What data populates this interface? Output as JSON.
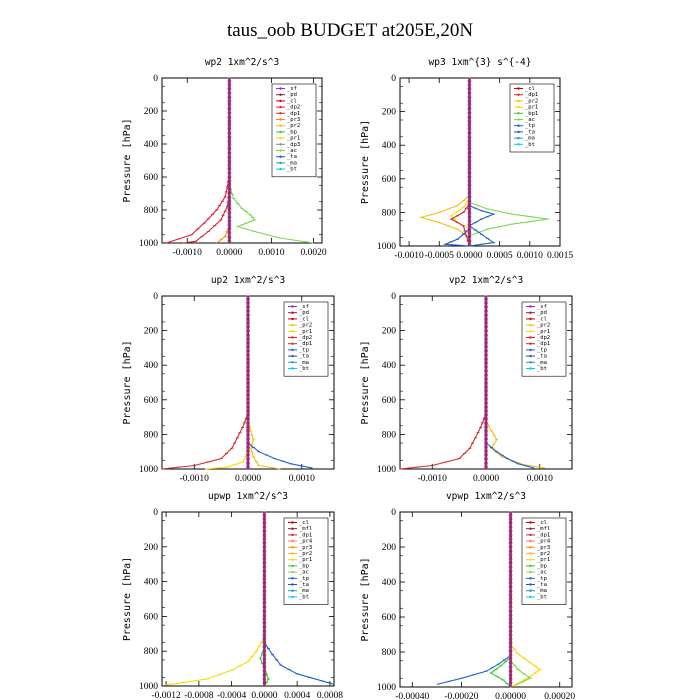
{
  "title": "taus_oob  BUDGET at205E,20N",
  "colors": {
    "_sf": "#8a2be2",
    "_pd": "#8b1a4a",
    "_cl": "#c80000",
    "_dp2": "#e8203a",
    "_dp1": "#d22c2c",
    "_pr3": "#ff8c00",
    "_pr2": "#f0c020",
    "_pr1": "#ffd700",
    "_bp": "#32cd32",
    "_bp1": "#32cd32",
    "_ac": "#7cd850",
    "_tp": "#1e64c8",
    "_ta": "#2050e0",
    "_ma": "#20a0a0",
    "_bt": "#00c8ff",
    "_mfl": "#8b1a4a",
    "_pr4": "#ff7f50"
  },
  "chart_data": [
    {
      "type": "line",
      "title": "wp2   1xm^2/s^3",
      "ylabel": "Pressure [hPa]",
      "xlim": [
        -0.0016,
        0.0022
      ],
      "ylim": [
        1000,
        0
      ],
      "xticks": [
        -0.001,
        0.0,
        0.001,
        0.002
      ],
      "xtick_labels": [
        "-0.0010",
        "0.0000",
        "0.0010",
        "0.0020"
      ],
      "yticks": [
        0,
        200,
        400,
        600,
        800,
        1000
      ],
      "legend": [
        "_sf",
        "_pd",
        "_cl",
        "_dp2",
        "_dp1",
        "_pr3",
        "_pr2",
        "_bp",
        "_pr1",
        "_dp3",
        "_ac",
        "_ta",
        "_ma",
        "_bt"
      ],
      "series": [
        {
          "name": "_dp2",
          "values": [
            [
              0,
              0
            ],
            [
              0,
              600
            ],
            [
              -0.0001,
              720
            ],
            [
              -0.0003,
              800
            ],
            [
              -0.0006,
              880
            ],
            [
              -0.0009,
              950
            ],
            [
              -0.0015,
              1000
            ]
          ]
        },
        {
          "name": "_dp1",
          "values": [
            [
              0,
              0
            ],
            [
              0,
              700
            ],
            [
              -5e-05,
              780
            ],
            [
              -0.0002,
              860
            ],
            [
              -0.0005,
              930
            ],
            [
              -0.0008,
              990
            ],
            [
              -0.0011,
              1000
            ]
          ]
        },
        {
          "name": "_ac",
          "values": [
            [
              0,
              0
            ],
            [
              0,
              650
            ],
            [
              0.0001,
              730
            ],
            [
              0.0003,
              790
            ],
            [
              0.0005,
              830
            ],
            [
              0.0006,
              860
            ],
            [
              0.0004,
              880
            ],
            [
              0.0002,
              900
            ],
            [
              0.0006,
              930
            ],
            [
              0.0012,
              970
            ],
            [
              0.002,
              1000
            ]
          ]
        },
        {
          "name": "_pr3",
          "values": [
            [
              0,
              0
            ],
            [
              0,
              900
            ],
            [
              -0.0001,
              960
            ],
            [
              -0.0003,
              1000
            ]
          ]
        },
        {
          "name": "_sf",
          "values": [
            [
              0,
              0
            ],
            [
              0,
              1000
            ]
          ]
        },
        {
          "name": "_pd",
          "values": [
            [
              0,
              0
            ],
            [
              0,
              1000
            ]
          ]
        }
      ]
    },
    {
      "type": "line",
      "title": "wp3   1xm^{3} s^{-4}",
      "ylabel": "Pressure [hPa]",
      "xlim": [
        -0.00115,
        0.0015
      ],
      "ylim": [
        1000,
        0
      ],
      "xticks": [
        -0.001,
        -0.0005,
        0.0,
        0.0005,
        0.001,
        0.0015
      ],
      "xtick_labels": [
        "-0.0010",
        "-0.0005",
        "0.0000",
        "0.0005",
        "0.0010",
        "0.0015"
      ],
      "yticks": [
        0,
        200,
        400,
        600,
        800,
        1000
      ],
      "legend": [
        "_cl",
        "_dp1",
        "_pr2",
        "_pr1",
        "_bp1",
        "_ac",
        "_tp",
        "_ta",
        "_ma",
        "_bt"
      ],
      "series": [
        {
          "name": "_pr2",
          "values": [
            [
              0,
              0
            ],
            [
              0,
              700
            ],
            [
              -0.0002,
              760
            ],
            [
              -0.0005,
              800
            ],
            [
              -0.0008,
              830
            ],
            [
              -0.0005,
              860
            ],
            [
              -0.0002,
              900
            ],
            [
              0,
              950
            ],
            [
              0,
              1000
            ]
          ]
        },
        {
          "name": "_pr1",
          "values": [
            [
              0,
              0
            ],
            [
              0,
              720
            ],
            [
              -0.0001,
              770
            ],
            [
              -0.0003,
              820
            ],
            [
              -0.0002,
              860
            ],
            [
              0,
              900
            ],
            [
              0,
              1000
            ]
          ]
        },
        {
          "name": "_dp1",
          "values": [
            [
              0,
              0
            ],
            [
              0,
              750
            ],
            [
              -0.0001,
              800
            ],
            [
              -0.0003,
              840
            ],
            [
              -0.0001,
              880
            ],
            [
              0,
              1000
            ]
          ]
        },
        {
          "name": "_ac",
          "values": [
            [
              0,
              0
            ],
            [
              0,
              740
            ],
            [
              0.0003,
              780
            ],
            [
              0.0007,
              810
            ],
            [
              0.0013,
              840
            ],
            [
              0.0007,
              870
            ],
            [
              0.0003,
              900
            ],
            [
              0,
              940
            ],
            [
              0,
              1000
            ]
          ]
        },
        {
          "name": "_tp",
          "values": [
            [
              0,
              0
            ],
            [
              0,
              760
            ],
            [
              0.0002,
              790
            ],
            [
              0.0004,
              810
            ],
            [
              0.0002,
              840
            ],
            [
              0,
              880
            ],
            [
              0.0002,
              930
            ],
            [
              0.0004,
              980
            ],
            [
              0,
              1000
            ]
          ]
        },
        {
          "name": "_ta",
          "values": [
            [
              0,
              0
            ],
            [
              0,
              900
            ],
            [
              -0.0002,
              960
            ],
            [
              -0.0004,
              990
            ],
            [
              0,
              1000
            ]
          ]
        },
        {
          "name": "_cl",
          "values": [
            [
              0,
              0
            ],
            [
              0,
              1000
            ]
          ]
        }
      ]
    },
    {
      "type": "line",
      "title": "up2   1xm^2/s^3",
      "ylabel": "Pressure [hPa]",
      "xlim": [
        -0.0016,
        0.0016
      ],
      "ylim": [
        1000,
        0
      ],
      "xticks": [
        -0.001,
        0.0,
        0.001
      ],
      "xtick_labels": [
        "-0.0010",
        "0.0000",
        "0.0010"
      ],
      "yticks": [
        0,
        200,
        400,
        600,
        800,
        1000
      ],
      "legend": [
        "_sf",
        "_pd",
        "_cl",
        "_pr2",
        "_pr1",
        "_dp2",
        "_dp1",
        "_tp",
        "_ta",
        "_ma",
        "_bt"
      ],
      "series": [
        {
          "name": "_dp1",
          "values": [
            [
              0,
              0
            ],
            [
              0,
              680
            ],
            [
              -0.0001,
              760
            ],
            [
              -0.0002,
              820
            ],
            [
              -0.0003,
              880
            ],
            [
              -0.0005,
              940
            ],
            [
              -0.001,
              980
            ],
            [
              -0.0016,
              1000
            ]
          ]
        },
        {
          "name": "_pr2",
          "values": [
            [
              0,
              0
            ],
            [
              0,
              720
            ],
            [
              5e-05,
              780
            ],
            [
              0.0001,
              830
            ],
            [
              5e-05,
              880
            ],
            [
              0.0001,
              930
            ],
            [
              0.0002,
              980
            ],
            [
              0.0006,
              1000
            ]
          ]
        },
        {
          "name": "_pr1",
          "values": [
            [
              0,
              0
            ],
            [
              0,
              900
            ],
            [
              -0.0001,
              960
            ],
            [
              -0.0004,
              990
            ],
            [
              -0.0008,
              1000
            ]
          ]
        },
        {
          "name": "_tp",
          "values": [
            [
              0,
              0
            ],
            [
              0,
              850
            ],
            [
              0.0002,
              900
            ],
            [
              0.0005,
              940
            ],
            [
              0.0008,
              970
            ],
            [
              0.0012,
              995
            ]
          ]
        },
        {
          "name": "_sf",
          "values": [
            [
              0,
              0
            ],
            [
              0,
              1000
            ]
          ]
        }
      ]
    },
    {
      "type": "line",
      "title": "vp2   1xm^2/s^3",
      "ylabel": "Pressure [hPa]",
      "xlim": [
        -0.0016,
        0.0016
      ],
      "ylim": [
        1000,
        0
      ],
      "xticks": [
        -0.001,
        0.0,
        0.001
      ],
      "xtick_labels": [
        "-0.0010",
        "0.0000",
        "0.0010"
      ],
      "yticks": [
        0,
        200,
        400,
        600,
        800,
        1000
      ],
      "legend": [
        "_sf",
        "_pd",
        "_cl",
        "_pr2",
        "_pr1",
        "_dp2",
        "_dp1",
        "_tp",
        "_ta",
        "_ma",
        "_bt"
      ],
      "series": [
        {
          "name": "_dp1",
          "values": [
            [
              0,
              0
            ],
            [
              0,
              680
            ],
            [
              -0.0001,
              760
            ],
            [
              -0.0002,
              820
            ],
            [
              -0.0003,
              880
            ],
            [
              -0.0005,
              940
            ],
            [
              -0.001,
              980
            ],
            [
              -0.0016,
              1000
            ]
          ]
        },
        {
          "name": "_pr2",
          "values": [
            [
              0,
              0
            ],
            [
              0,
              720
            ],
            [
              0.0001,
              780
            ],
            [
              0.0002,
              830
            ],
            [
              0.0001,
              880
            ],
            [
              0.0003,
              930
            ],
            [
              0.0007,
              975
            ],
            [
              0.0011,
              995
            ]
          ]
        },
        {
          "name": "_tp",
          "values": [
            [
              0,
              0
            ],
            [
              0,
              850
            ],
            [
              0.0002,
              900
            ],
            [
              0.0004,
              940
            ],
            [
              0.0006,
              970
            ],
            [
              0.0009,
              995
            ]
          ]
        },
        {
          "name": "_sf",
          "values": [
            [
              0,
              0
            ],
            [
              0,
              1000
            ]
          ]
        }
      ]
    },
    {
      "type": "line",
      "title": "upwp   1xm^2/s^3",
      "ylabel": "Pressure [hPa]",
      "xlim": [
        -0.00125,
        0.00085
      ],
      "ylim": [
        1000,
        0
      ],
      "xticks": [
        -0.0012,
        -0.0008,
        -0.0004,
        0.0,
        0.0004,
        0.0008
      ],
      "xtick_labels": [
        "-0.0012",
        "-0.0008",
        "-0.0004",
        "0.0000",
        "0.0004",
        "0.0008"
      ],
      "yticks": [
        0,
        200,
        400,
        600,
        800,
        1000
      ],
      "legend": [
        "_cl",
        "_mfl",
        "_dp1",
        "_pr4",
        "_pr3",
        "_pr2",
        "_pr1",
        "_bp",
        "_ac",
        "_tp",
        "_ta",
        "_ma",
        "_bt"
      ],
      "series": [
        {
          "name": "_pr1",
          "values": [
            [
              0,
              0
            ],
            [
              0,
              720
            ],
            [
              -0.0001,
              800
            ],
            [
              -0.0002,
              860
            ],
            [
              -0.0004,
              910
            ],
            [
              -0.0007,
              960
            ],
            [
              -0.0012,
              995
            ]
          ]
        },
        {
          "name": "_tp",
          "values": [
            [
              0,
              0
            ],
            [
              0,
              750
            ],
            [
              0.0001,
              820
            ],
            [
              0.0002,
              880
            ],
            [
              0.0004,
              930
            ],
            [
              0.0007,
              970
            ],
            [
              0.00085,
              990
            ]
          ]
        },
        {
          "name": "_bp",
          "values": [
            [
              0,
              0
            ],
            [
              0,
              780
            ],
            [
              -5e-05,
              840
            ],
            [
              0,
              900
            ],
            [
              5e-05,
              960
            ],
            [
              0,
              1000
            ]
          ]
        },
        {
          "name": "_cl",
          "values": [
            [
              0,
              0
            ],
            [
              0,
              1000
            ]
          ]
        }
      ]
    },
    {
      "type": "line",
      "title": "vpwp   1xm^2/s^3",
      "ylabel": "Pressure [hPa]",
      "xlim": [
        -0.00045,
        0.00025
      ],
      "ylim": [
        1000,
        0
      ],
      "xticks": [
        -0.0004,
        -0.0002,
        0.0,
        0.0002
      ],
      "xtick_labels": [
        "-0.00040",
        "-0.00020",
        "0.00000",
        "0.00020"
      ],
      "yticks": [
        0,
        200,
        400,
        600,
        800,
        1000
      ],
      "legend": [
        "_cl",
        "_mfl",
        "_dp1",
        "_pr4",
        "_pr3",
        "_pr2",
        "_pr1",
        "_bp",
        "_ac",
        "_tp",
        "_ta",
        "_ma",
        "_bt"
      ],
      "series": [
        {
          "name": "_pr1",
          "values": [
            [
              0,
              0
            ],
            [
              0,
              760
            ],
            [
              3e-05,
              810
            ],
            [
              8e-05,
              860
            ],
            [
              0.00012,
              900
            ],
            [
              8e-05,
              940
            ],
            [
              3e-05,
              980
            ],
            [
              0,
              1000
            ]
          ]
        },
        {
          "name": "_tp",
          "values": [
            [
              0,
              0
            ],
            [
              0,
              820
            ],
            [
              -5e-05,
              870
            ],
            [
              -0.0001,
              910
            ],
            [
              -0.0002,
              950
            ],
            [
              -0.0003,
              985
            ]
          ]
        },
        {
          "name": "_bp",
          "values": [
            [
              0,
              0
            ],
            [
              0,
              830
            ],
            [
              -4e-05,
              880
            ],
            [
              -8e-05,
              920
            ],
            [
              -3e-05,
              960
            ],
            [
              0,
              1000
            ]
          ]
        },
        {
          "name": "_ac",
          "values": [
            [
              0,
              0
            ],
            [
              0,
              850
            ],
            [
              3e-05,
              900
            ],
            [
              8e-05,
              950
            ],
            [
              2e-05,
              990
            ]
          ]
        },
        {
          "name": "_cl",
          "values": [
            [
              0,
              0
            ],
            [
              0,
              1000
            ]
          ]
        }
      ]
    }
  ]
}
